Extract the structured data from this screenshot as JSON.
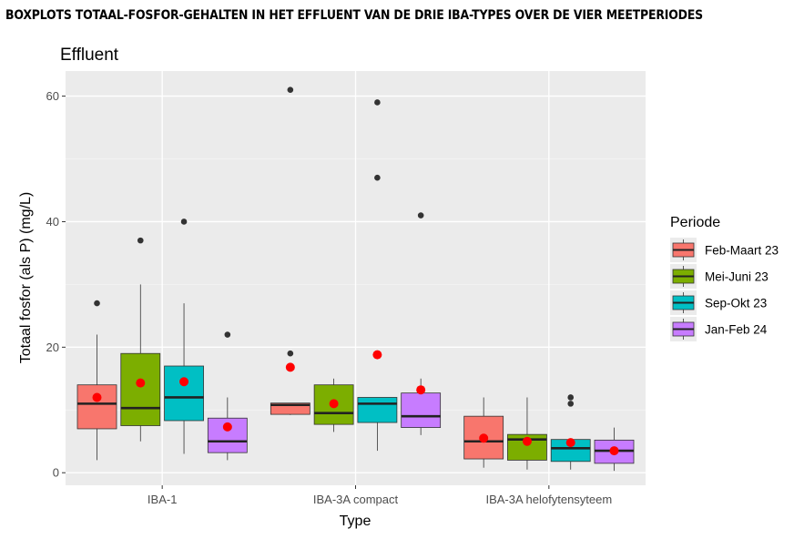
{
  "figure_title": "BOXPLOTS TOTAAL-FOSFOR-GEHALTEN IN HET EFFLUENT VAN DE DRIE IBA-TYPES OVER DE VIER MEETPERIODES",
  "chart_data": {
    "type": "boxplot",
    "title": "Effluent",
    "xlabel": "Type",
    "ylabel": "Totaal fosfor (als P) (mg/L)",
    "ylim": [
      -2,
      64
    ],
    "yticks": [
      0,
      20,
      40,
      60
    ],
    "grid": true,
    "legend": {
      "title": "Periode",
      "position": "right"
    },
    "categories": [
      "IBA-1",
      "IBA-3A compact",
      "IBA-3A helofytensyteem"
    ],
    "series": [
      {
        "name": "Feb-Maart 23",
        "color": "#F8766D",
        "boxes": [
          {
            "q1": 7,
            "median": 11,
            "q3": 14,
            "whisker_low": 2,
            "whisker_high": 22,
            "mean": 12,
            "outliers": [
              27
            ]
          },
          {
            "q1": 9.3,
            "median": 10.8,
            "q3": 11.1,
            "whisker_low": 9.2,
            "whisker_high": 11.1,
            "mean": 16.8,
            "outliers": [
              19,
              61
            ]
          },
          {
            "q1": 2.2,
            "median": 5,
            "q3": 9,
            "whisker_low": 0.8,
            "whisker_high": 12,
            "mean": 5.5,
            "outliers": []
          }
        ]
      },
      {
        "name": "Mei-Juni 23",
        "color": "#7CAE00",
        "boxes": [
          {
            "q1": 7.5,
            "median": 10.3,
            "q3": 19,
            "whisker_low": 5,
            "whisker_high": 30,
            "mean": 14.3,
            "outliers": [
              37
            ]
          },
          {
            "q1": 7.7,
            "median": 9.5,
            "q3": 14,
            "whisker_low": 6.5,
            "whisker_high": 15,
            "mean": 11,
            "outliers": []
          },
          {
            "q1": 2,
            "median": 5.3,
            "q3": 6.1,
            "whisker_low": 0.5,
            "whisker_high": 12,
            "mean": 5,
            "outliers": []
          }
        ]
      },
      {
        "name": "Sep-Okt 23",
        "color": "#00BFC4",
        "boxes": [
          {
            "q1": 8.3,
            "median": 12,
            "q3": 17,
            "whisker_low": 3,
            "whisker_high": 27,
            "mean": 14.5,
            "outliers": [
              40
            ]
          },
          {
            "q1": 8,
            "median": 11,
            "q3": 12,
            "whisker_low": 3.5,
            "whisker_high": 12,
            "mean": 18.8,
            "outliers": [
              47,
              59
            ]
          },
          {
            "q1": 1.8,
            "median": 3.9,
            "q3": 5.3,
            "whisker_low": 0.5,
            "whisker_high": 5.3,
            "mean": 4.8,
            "outliers": [
              11,
              12
            ]
          }
        ]
      },
      {
        "name": "Jan-Feb 24",
        "color": "#C77CFF",
        "boxes": [
          {
            "q1": 3.2,
            "median": 5,
            "q3": 8.7,
            "whisker_low": 2,
            "whisker_high": 12,
            "mean": 7.3,
            "outliers": [
              22
            ]
          },
          {
            "q1": 7.2,
            "median": 9,
            "q3": 12.7,
            "whisker_low": 6,
            "whisker_high": 15,
            "mean": 13.2,
            "outliers": [
              41
            ]
          },
          {
            "q1": 1.5,
            "median": 3.5,
            "q3": 5.2,
            "whisker_low": 0.3,
            "whisker_high": 7.2,
            "mean": 3.5,
            "outliers": []
          }
        ]
      }
    ]
  }
}
